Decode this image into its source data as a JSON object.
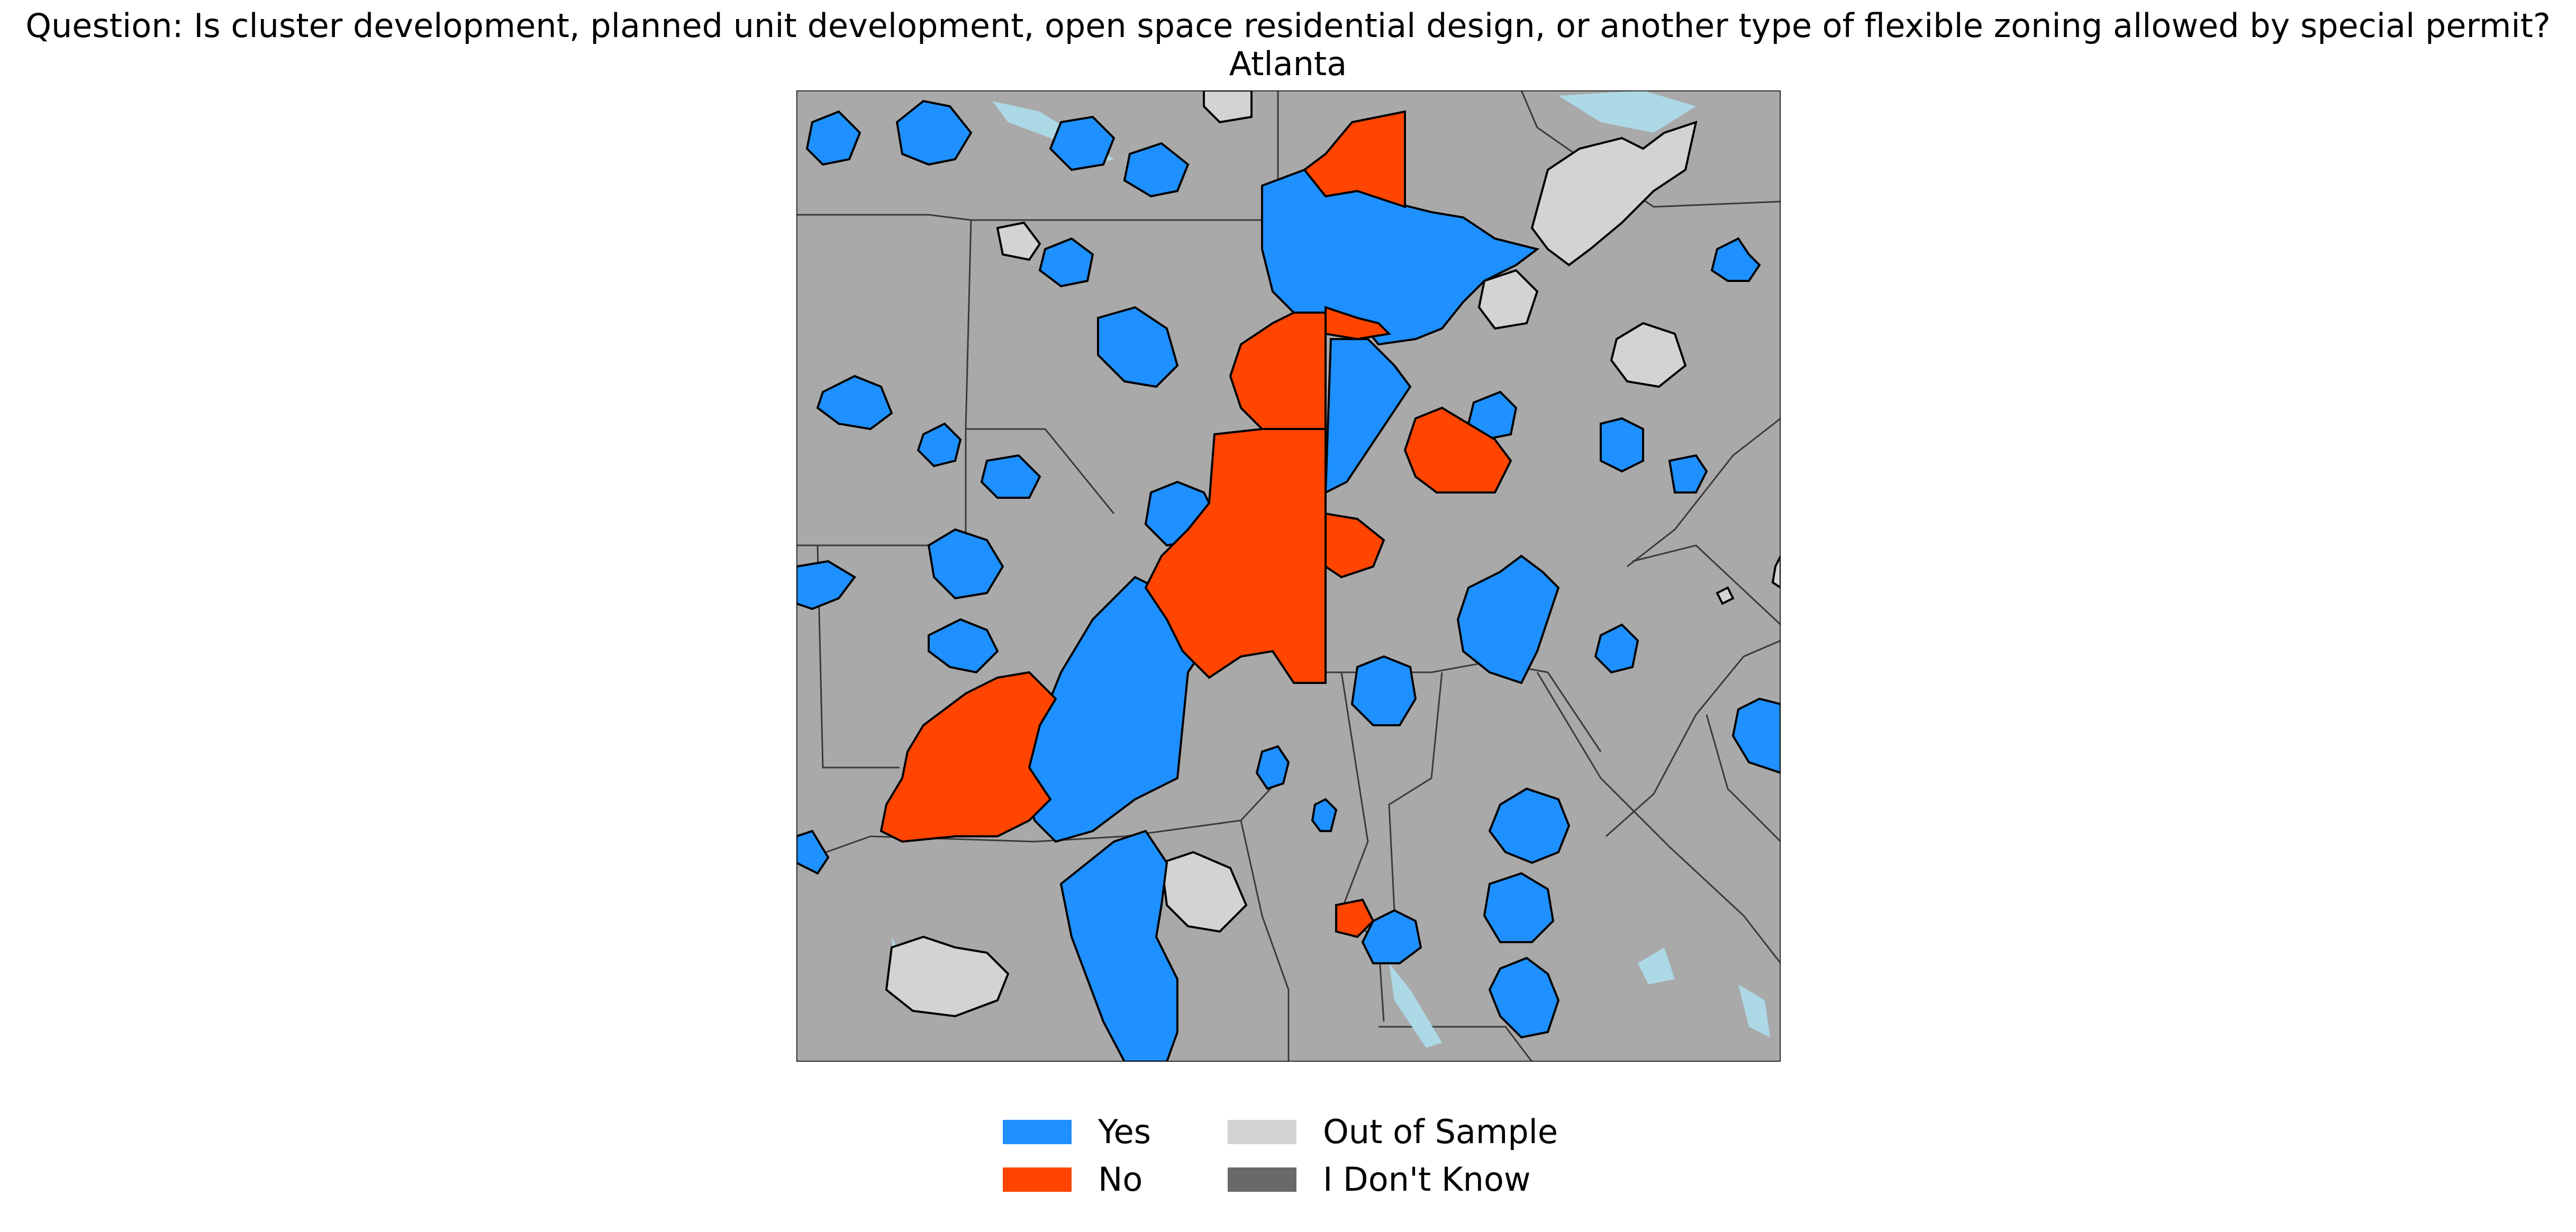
{
  "title": "Question: Is cluster development, planned unit development, open space residential design, or another type of flexible zoning allowed by special permit?",
  "subtitle": "Atlanta",
  "colors": {
    "yes": "#1E90FF",
    "no": "#FF4500",
    "out_of_sample": "#D3D3D3",
    "dont_know": "#696969",
    "background_land": "#A9A9A9",
    "water": "#ADD8E6"
  },
  "legend": [
    {
      "label": "Yes",
      "color": "#1E90FF"
    },
    {
      "label": "No",
      "color": "#FF4500"
    },
    {
      "label": "Out of Sample",
      "color": "#D3D3D3"
    },
    {
      "label": "I Don't Know",
      "color": "#696969"
    }
  ]
}
